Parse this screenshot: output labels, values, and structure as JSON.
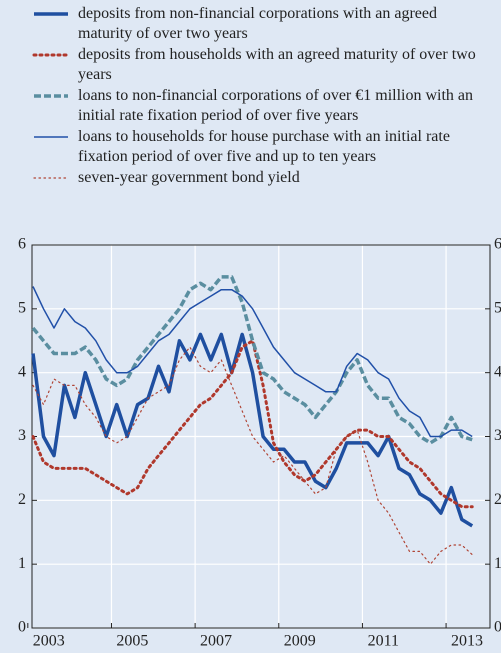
{
  "chart_data": {
    "type": "line",
    "x": [
      2003.125,
      2003.375,
      2003.625,
      2003.875,
      2004.125,
      2004.375,
      2004.625,
      2004.875,
      2005.125,
      2005.375,
      2005.625,
      2005.875,
      2006.125,
      2006.375,
      2006.625,
      2006.875,
      2007.125,
      2007.375,
      2007.625,
      2007.875,
      2008.125,
      2008.375,
      2008.625,
      2008.875,
      2009.125,
      2009.375,
      2009.625,
      2009.875,
      2010.125,
      2010.375,
      2010.625,
      2010.875,
      2011.125,
      2011.375,
      2011.625,
      2011.875,
      2012.125,
      2012.375,
      2012.625,
      2012.875,
      2013.125,
      2013.375,
      2013.625
    ],
    "series": [
      {
        "name": "deposits from non-financial corporations with an agreed maturity of over two years",
        "color": "#1f4fa0",
        "linestyle": "solid",
        "linewidth": 3.5,
        "values": [
          4.3,
          3.0,
          2.7,
          3.8,
          3.3,
          4.0,
          3.5,
          3.0,
          3.5,
          3.0,
          3.5,
          3.6,
          4.1,
          3.7,
          4.5,
          4.2,
          4.6,
          4.2,
          4.6,
          4.0,
          4.6,
          4.0,
          3.0,
          2.8,
          2.8,
          2.6,
          2.6,
          2.3,
          2.2,
          2.5,
          2.9,
          2.9,
          2.9,
          2.7,
          3.0,
          2.5,
          2.4,
          2.1,
          2.0,
          1.8,
          2.2,
          1.7,
          1.6
        ]
      },
      {
        "name": "deposits from households with an agreed maturity of over two years",
        "color": "#b0382c",
        "linestyle": "dotted",
        "linewidth": 3,
        "values": [
          3.0,
          2.6,
          2.5,
          2.5,
          2.5,
          2.5,
          2.4,
          2.3,
          2.2,
          2.1,
          2.2,
          2.5,
          2.7,
          2.9,
          3.1,
          3.3,
          3.5,
          3.6,
          3.8,
          4.0,
          4.4,
          4.5,
          3.8,
          2.9,
          2.6,
          2.4,
          2.3,
          2.4,
          2.6,
          2.8,
          3.0,
          3.1,
          3.1,
          3.0,
          3.0,
          2.8,
          2.6,
          2.5,
          2.3,
          2.1,
          2.0,
          1.9,
          1.9
        ]
      },
      {
        "name": "loans to non-financial corporations of over €1 million with an initial rate fixation period of over five years",
        "color": "#5a8ea0",
        "linestyle": "dashed",
        "linewidth": 3.5,
        "values": [
          4.7,
          4.5,
          4.3,
          4.3,
          4.3,
          4.4,
          4.2,
          3.9,
          3.8,
          3.9,
          4.2,
          4.4,
          4.6,
          4.8,
          5.0,
          5.3,
          5.4,
          5.3,
          5.5,
          5.5,
          5.1,
          4.5,
          4.0,
          3.9,
          3.7,
          3.6,
          3.5,
          3.3,
          3.5,
          3.7,
          4.0,
          4.2,
          3.8,
          3.6,
          3.6,
          3.3,
          3.2,
          3.0,
          2.9,
          3.0,
          3.3,
          3.0,
          2.95
        ]
      },
      {
        "name": "loans to households for house purchase with an initial rate fixation period of over five and up to ten years",
        "color": "#2150a8",
        "linestyle": "solid",
        "linewidth": 1.5,
        "values": [
          5.35,
          5.0,
          4.7,
          5.0,
          4.8,
          4.7,
          4.5,
          4.2,
          4.0,
          4.0,
          4.1,
          4.3,
          4.5,
          4.6,
          4.8,
          5.0,
          5.1,
          5.2,
          5.3,
          5.3,
          5.2,
          5.0,
          4.7,
          4.4,
          4.2,
          4.0,
          3.9,
          3.8,
          3.7,
          3.7,
          4.1,
          4.3,
          4.2,
          4.0,
          3.9,
          3.6,
          3.4,
          3.3,
          3.0,
          3.0,
          3.1,
          3.1,
          3.0
        ]
      },
      {
        "name": "seven-year government bond yield",
        "color": "#b04434",
        "linestyle": "dotted",
        "linewidth": 1.2,
        "values": [
          3.8,
          3.5,
          3.9,
          3.8,
          3.8,
          3.5,
          3.3,
          3.0,
          2.9,
          3.0,
          3.3,
          3.6,
          3.7,
          3.8,
          4.2,
          4.4,
          4.1,
          4.0,
          4.2,
          3.8,
          3.4,
          3.0,
          2.8,
          2.6,
          2.7,
          2.5,
          2.3,
          2.1,
          2.2,
          2.8,
          3.0,
          3.1,
          2.6,
          2.0,
          1.8,
          1.5,
          1.2,
          1.2,
          1.0,
          1.2,
          1.3,
          1.3,
          1.15
        ]
      }
    ],
    "xlim": [
      2003.1,
      2014.05
    ],
    "xticks": [
      2003,
      2005,
      2007,
      2009,
      2011,
      2013
    ],
    "ylim": [
      0,
      6
    ],
    "yticks": [
      0,
      1,
      2,
      3,
      4,
      5,
      6
    ],
    "y2lim": [
      0,
      6
    ],
    "y2ticks": [
      0,
      1,
      2,
      3,
      4,
      5,
      6
    ],
    "grid": true
  }
}
